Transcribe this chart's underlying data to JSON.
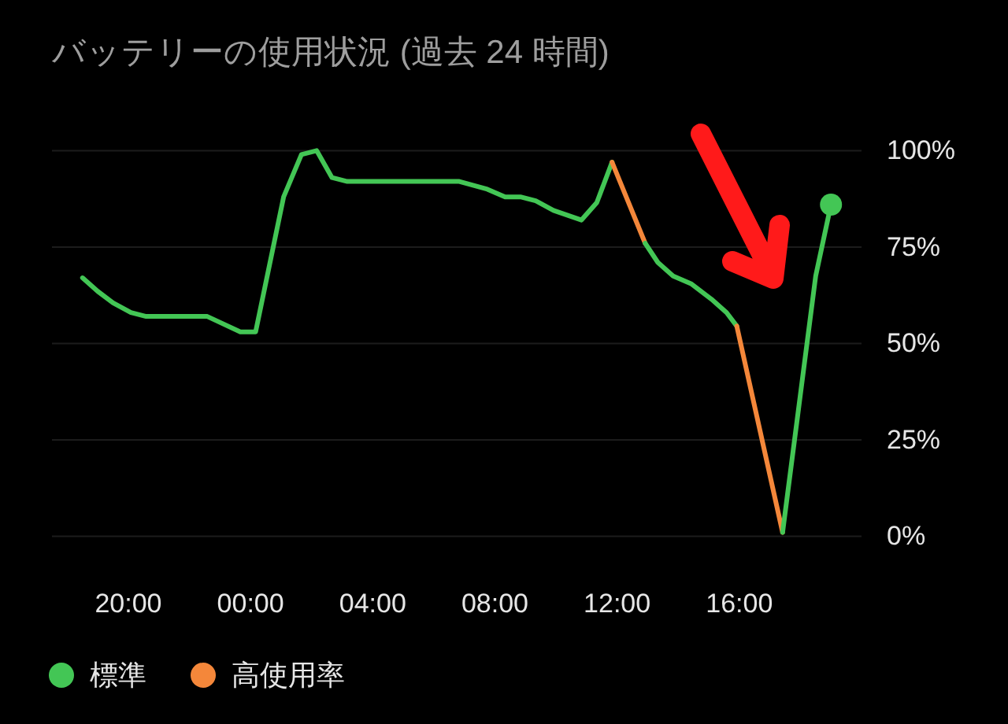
{
  "chart_data": {
    "type": "line",
    "title": "バッテリーの使用状況 (過去 24 時間)",
    "xlim": [
      "2000-01-01T17:30",
      "2000-01-02T20:00"
    ],
    "xticks": [
      {
        "value": "2000-01-01T20:00",
        "label": "20:00"
      },
      {
        "value": "2000-01-02T00:00",
        "label": "00:00"
      },
      {
        "value": "2000-01-02T04:00",
        "label": "04:00"
      },
      {
        "value": "2000-01-02T08:00",
        "label": "08:00"
      },
      {
        "value": "2000-01-02T12:00",
        "label": "12:00"
      },
      {
        "value": "2000-01-02T16:00",
        "label": "16:00"
      }
    ],
    "ylim": [
      0,
      100
    ],
    "yticks": [
      {
        "value": 0,
        "label": "0%"
      },
      {
        "value": 25,
        "label": "25%"
      },
      {
        "value": 50,
        "label": "50%"
      },
      {
        "value": 75,
        "label": "75%"
      },
      {
        "value": 100,
        "label": "100%"
      }
    ],
    "grid": "y",
    "legend": "bottom",
    "line_style": "solid",
    "series": [
      {
        "name": "標準",
        "color": "#43c655",
        "x": [
          "2000-01-01T18:30",
          "2000-01-01T19:00",
          "2000-01-01T19:30",
          "2000-01-01T20:05",
          "2000-01-01T20:35",
          "2000-01-01T22:35",
          "2000-01-01T23:40",
          "2000-01-02T00:10",
          "2000-01-02T01:05",
          "2000-01-02T01:40",
          "2000-01-02T02:10",
          "2000-01-02T02:40",
          "2000-01-02T03:10",
          "2000-01-02T06:50",
          "2000-01-02T07:45",
          "2000-01-02T08:20",
          "2000-01-02T08:50",
          "2000-01-02T09:20",
          "2000-01-02T09:55",
          "2000-01-02T10:50",
          "2000-01-02T11:20",
          "2000-01-02T11:50"
        ],
        "values": [
          67,
          63.5,
          60.5,
          58,
          57,
          57,
          53,
          53,
          88,
          99,
          100,
          93,
          92,
          92,
          90,
          88,
          88,
          87,
          84.5,
          82,
          86.5,
          97
        ]
      },
      {
        "name": "高使用率",
        "color": "#f4873a",
        "x": [
          "2000-01-02T11:50",
          "2000-01-02T12:55"
        ],
        "values": [
          97,
          76
        ]
      },
      {
        "color": "#43c655",
        "x": [
          "2000-01-02T12:55",
          "2000-01-02T13:20",
          "2000-01-02T13:50",
          "2000-01-02T14:25",
          "2000-01-02T15:05",
          "2000-01-02T15:35",
          "2000-01-02T15:55"
        ],
        "values": [
          76,
          71,
          67.5,
          65.5,
          61.5,
          58,
          54.5
        ]
      },
      {
        "color": "#f4873a",
        "x": [
          "2000-01-02T15:55",
          "2000-01-02T17:25"
        ],
        "values": [
          54.5,
          1
        ]
      },
      {
        "color": "#43c655",
        "x": [
          "2000-01-02T17:25",
          "2000-01-02T18:30",
          "2000-01-02T19:00"
        ],
        "values": [
          1,
          67.5,
          86
        ]
      },
      {
        "type": "scatter",
        "color": "#43c655",
        "marker": "circle",
        "x": [
          "2000-01-02T19:00"
        ],
        "values": [
          86
        ]
      }
    ]
  }
}
